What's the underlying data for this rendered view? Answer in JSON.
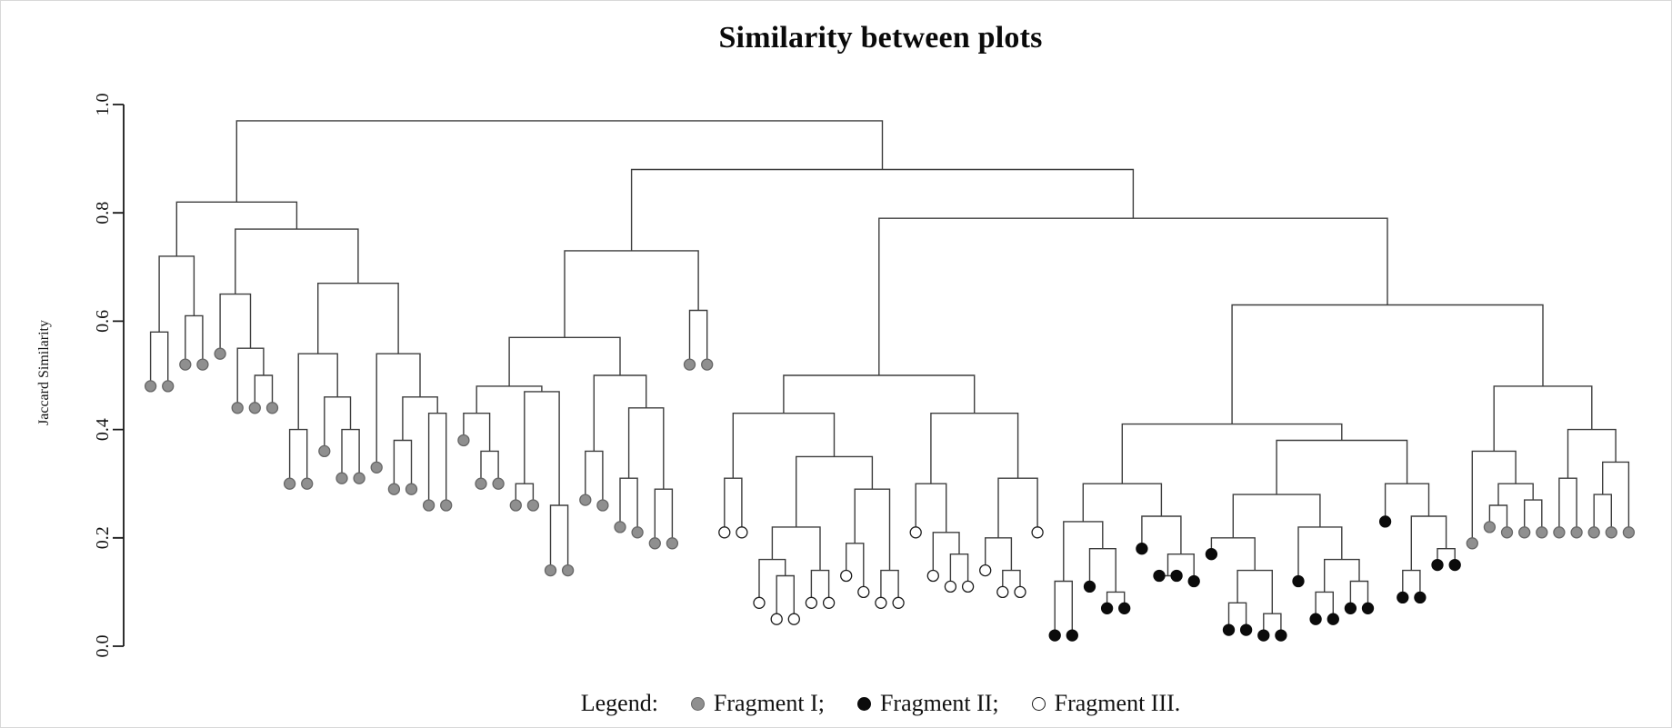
{
  "title": "Similarity between plots",
  "y_axis": {
    "label": "Jaccard Similarity"
  },
  "legend": {
    "prefix": "Legend:",
    "items": [
      {
        "group": "I",
        "label": "Fragment I;"
      },
      {
        "group": "II",
        "label": "Fragment II;"
      },
      {
        "group": "III",
        "label": "Fragment III."
      }
    ]
  },
  "chart_data": {
    "type": "dendrogram",
    "title": "Similarity between plots",
    "ylabel": "Jaccard Similarity",
    "ylim": [
      0.0,
      1.0
    ],
    "yticks": [
      0.0,
      0.2,
      0.4,
      0.6,
      0.8,
      1.0
    ],
    "grid": false,
    "line_color": "#3d3d3d",
    "groups": {
      "I": {
        "label": "Fragment I",
        "fill": "#8f8f8f",
        "stroke": "#666666"
      },
      "II": {
        "label": "Fragment II",
        "fill": "#0b0b0b",
        "stroke": "#0b0b0b"
      },
      "III": {
        "label": "Fragment III",
        "fill": "#ffffff",
        "stroke": "#1a1a1a"
      }
    },
    "tree": [
      0.97,
      [
        0.82,
        [
          0.72,
          [
            0.58,
            [
              "I",
              0.48
            ],
            [
              "I",
              0.48
            ]
          ],
          [
            0.61,
            [
              "I",
              0.52
            ],
            [
              "I",
              0.52
            ]
          ]
        ],
        [
          0.77,
          [
            0.65,
            [
              "I",
              0.54
            ],
            [
              0.55,
              [
                "I",
                0.44
              ],
              [
                0.5,
                [
                  "I",
                  0.44
                ],
                [
                  "I",
                  0.44
                ]
              ]
            ]
          ],
          [
            0.67,
            [
              0.54,
              [
                0.4,
                [
                  "I",
                  0.3
                ],
                [
                  "I",
                  0.3
                ]
              ],
              [
                0.46,
                [
                  "I",
                  0.36
                ],
                [
                  0.4,
                  [
                    "I",
                    0.31
                  ],
                  [
                    "I",
                    0.31
                  ]
                ]
              ]
            ],
            [
              0.54,
              [
                "I",
                0.33
              ],
              [
                0.46,
                [
                  0.38,
                  [
                    "I",
                    0.29
                  ],
                  [
                    "I",
                    0.29
                  ]
                ],
                [
                  0.43,
                  [
                    "I",
                    0.26
                  ],
                  [
                    "I",
                    0.26
                  ]
                ]
              ]
            ]
          ]
        ]
      ],
      [
        0.88,
        [
          0.73,
          [
            0.57,
            [
              0.48,
              [
                0.43,
                [
                  "I",
                  0.38
                ],
                [
                  0.36,
                  [
                    "I",
                    0.3
                  ],
                  [
                    "I",
                    0.3
                  ]
                ]
              ],
              [
                0.47,
                [
                  0.3,
                  [
                    "I",
                    0.26
                  ],
                  [
                    "I",
                    0.26
                  ]
                ],
                [
                  0.26,
                  [
                    "I",
                    0.14
                  ],
                  [
                    "I",
                    0.14
                  ]
                ]
              ]
            ],
            [
              0.5,
              [
                0.36,
                [
                  "I",
                  0.27
                ],
                [
                  "I",
                  0.26
                ]
              ],
              [
                0.44,
                [
                  0.31,
                  [
                    "I",
                    0.22
                  ],
                  [
                    "I",
                    0.21
                  ]
                ],
                [
                  0.29,
                  [
                    "I",
                    0.19
                  ],
                  [
                    "I",
                    0.19
                  ]
                ]
              ]
            ]
          ],
          [
            0.62,
            [
              "I",
              0.52
            ],
            [
              "I",
              0.52
            ]
          ]
        ],
        [
          0.79,
          [
            0.5,
            [
              0.43,
              [
                0.31,
                [
                  "III",
                  0.21
                ],
                [
                  "III",
                  0.21
                ]
              ],
              [
                0.35,
                [
                  0.22,
                  [
                    0.16,
                    [
                      "III",
                      0.08
                    ],
                    [
                      0.13,
                      [
                        "III",
                        0.05
                      ],
                      [
                        "III",
                        0.05
                      ]
                    ]
                  ],
                  [
                    0.14,
                    [
                      "III",
                      0.08
                    ],
                    [
                      "III",
                      0.08
                    ]
                  ]
                ],
                [
                  0.29,
                  [
                    0.19,
                    [
                      "III",
                      0.13
                    ],
                    [
                      "III",
                      0.1
                    ]
                  ],
                  [
                    0.14,
                    [
                      "III",
                      0.08
                    ],
                    [
                      "III",
                      0.08
                    ]
                  ]
                ]
              ]
            ],
            [
              0.43,
              [
                0.3,
                [
                  "III",
                  0.21
                ],
                [
                  0.21,
                  [
                    "III",
                    0.13
                  ],
                  [
                    0.17,
                    [
                      "III",
                      0.11
                    ],
                    [
                      "III",
                      0.11
                    ]
                  ]
                ]
              ],
              [
                0.31,
                [
                  0.2,
                  [
                    "III",
                    0.14
                  ],
                  [
                    0.14,
                    [
                      "III",
                      0.1
                    ],
                    [
                      "III",
                      0.1
                    ]
                  ]
                ],
                [
                  "III",
                  0.21
                ]
              ]
            ]
          ],
          [
            0.63,
            [
              0.41,
              [
                0.3,
                [
                  0.23,
                  [
                    0.12,
                    [
                      "II",
                      0.02
                    ],
                    [
                      "II",
                      0.02
                    ]
                  ],
                  [
                    0.18,
                    [
                      "II",
                      0.11
                    ],
                    [
                      0.1,
                      [
                        "II",
                        0.07
                      ],
                      [
                        "II",
                        0.07
                      ]
                    ]
                  ]
                ],
                [
                  0.24,
                  [
                    "II",
                    0.18
                  ],
                  [
                    0.17,
                    [
                      0.13,
                      [
                        "II",
                        0.13
                      ],
                      [
                        "II",
                        0.13
                      ]
                    ],
                    [
                      "II",
                      0.12
                    ]
                  ]
                ]
              ],
              [
                0.38,
                [
                  0.28,
                  [
                    0.2,
                    [
                      "II",
                      0.17
                    ],
                    [
                      0.14,
                      [
                        0.08,
                        [
                          "II",
                          0.03
                        ],
                        [
                          "II",
                          0.03
                        ]
                      ],
                      [
                        0.06,
                        [
                          "II",
                          0.02
                        ],
                        [
                          "II",
                          0.02
                        ]
                      ]
                    ]
                  ],
                  [
                    0.22,
                    [
                      "II",
                      0.12
                    ],
                    [
                      0.16,
                      [
                        0.1,
                        [
                          "II",
                          0.05
                        ],
                        [
                          "II",
                          0.05
                        ]
                      ],
                      [
                        0.12,
                        [
                          "II",
                          0.07
                        ],
                        [
                          "II",
                          0.07
                        ]
                      ]
                    ]
                  ]
                ],
                [
                  0.3,
                  [
                    "II",
                    0.23
                  ],
                  [
                    0.24,
                    [
                      0.14,
                      [
                        "II",
                        0.09
                      ],
                      [
                        "II",
                        0.09
                      ]
                    ],
                    [
                      0.18,
                      [
                        "II",
                        0.15
                      ],
                      [
                        "II",
                        0.15
                      ]
                    ]
                  ]
                ]
              ]
            ],
            [
              0.48,
              [
                0.36,
                [
                  "I",
                  0.19
                ],
                [
                  0.3,
                  [
                    0.26,
                    [
                      "I",
                      0.22
                    ],
                    [
                      "I",
                      0.21
                    ]
                  ],
                  [
                    0.27,
                    [
                      "I",
                      0.21
                    ],
                    [
                      "I",
                      0.21
                    ]
                  ]
                ]
              ],
              [
                0.4,
                [
                  0.31,
                  [
                    "I",
                    0.21
                  ],
                  [
                    "I",
                    0.21
                  ]
                ],
                [
                  0.34,
                  [
                    0.28,
                    [
                      "I",
                      0.21
                    ],
                    [
                      "I",
                      0.21
                    ]
                  ],
                  [
                    "I",
                    0.21
                  ]
                ]
              ]
            ]
          ]
        ]
      ]
    ]
  }
}
